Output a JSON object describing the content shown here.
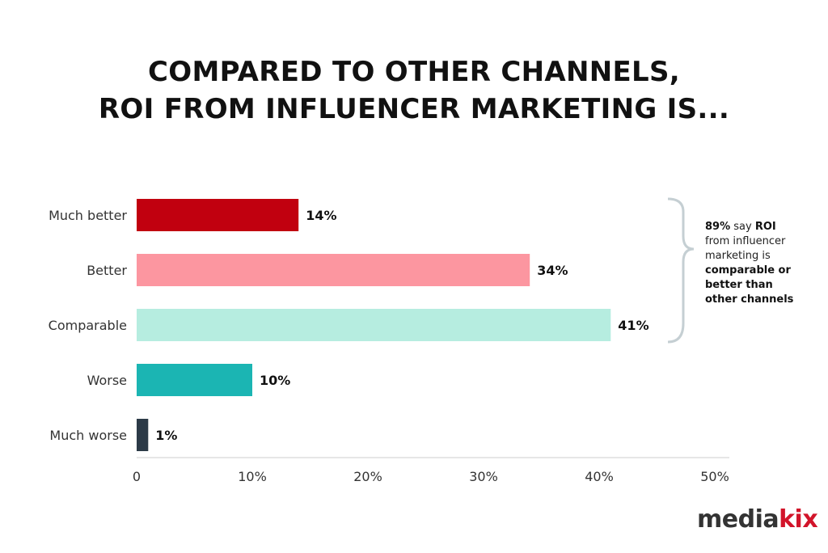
{
  "chart_data": {
    "type": "bar",
    "orientation": "horizontal",
    "title": [
      "COMPARED TO OTHER CHANNELS,",
      "ROI FROM INFLUENCER MARKETING IS..."
    ],
    "categories": [
      "Much better",
      "Better",
      "Comparable",
      "Worse",
      "Much worse"
    ],
    "values": [
      14,
      34,
      41,
      10,
      1
    ],
    "data_labels": [
      "14%",
      "34%",
      "41%",
      "10%",
      "1%"
    ],
    "colors": [
      "#c1000f",
      "#fc96a0",
      "#b6ede0",
      "#1bb5b3",
      "#2c3a47"
    ],
    "xlim": [
      0,
      50
    ],
    "xticks": [
      0,
      10,
      20,
      30,
      40,
      50
    ],
    "xtick_labels": [
      "0",
      "10%",
      "20%",
      "30%",
      "40%",
      "50%"
    ],
    "grid": false,
    "xlabel": "",
    "ylabel": "",
    "annotation": {
      "parts": [
        {
          "text": "89%",
          "bold": true
        },
        {
          "text": " say ",
          "bold": false
        },
        {
          "text": "ROI",
          "bold": true
        },
        {
          "text": " from influencer marketing is ",
          "bold": false
        },
        {
          "text": "comparable or better than other channels",
          "bold": true
        }
      ]
    }
  },
  "logo": {
    "text_dark": "media",
    "text_red": "kix",
    "colors": {
      "dark": "#333333",
      "red": "#d2142a"
    }
  }
}
